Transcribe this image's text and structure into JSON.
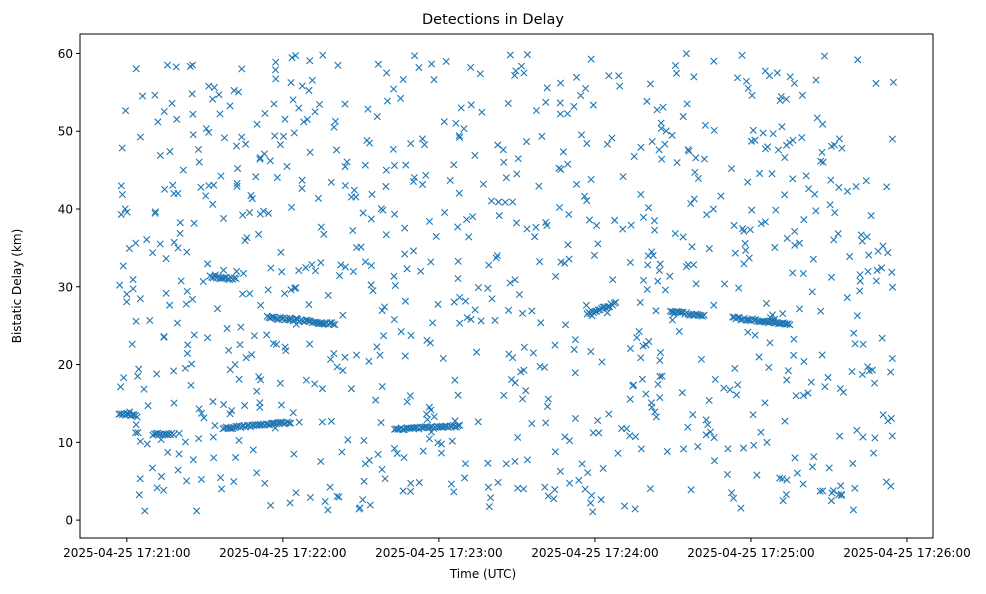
{
  "chart_data": {
    "type": "scatter",
    "title": "Detections in Delay",
    "xlabel": "Time (UTC)",
    "ylabel": "Bistatic Delay (km)",
    "x_axis_type": "time",
    "x_tick_labels": [
      "2025-04-25 17:21:00",
      "2025-04-25 17:22:00",
      "2025-04-25 17:23:00",
      "2025-04-25 17:24:00",
      "2025-04-25 17:25:00",
      "2025-04-25 17:26:00"
    ],
    "y_ticks": [
      0,
      10,
      20,
      30,
      40,
      50,
      60
    ],
    "xlim": [
      "2025-04-25 17:20:42",
      "2025-04-25 17:26:10"
    ],
    "ylim": [
      -2.3,
      62.5
    ],
    "grid": false,
    "marker": "x",
    "marker_color": "#1f77b4",
    "series": [
      {
        "note_only": true,
        "tracks": [
          {
            "t": [
              "2025-04-25 17:20:57",
              "2025-04-25 17:21:04"
            ],
            "delay": [
              13.6,
              13.4
            ]
          },
          {
            "t": [
              "2025-04-25 17:21:10",
              "2025-04-25 17:21:18"
            ],
            "delay": [
              11.0,
              11.1
            ]
          },
          {
            "t": [
              "2025-04-25 17:21:37",
              "2025-04-25 17:22:03"
            ],
            "delay": [
              11.8,
              12.6
            ]
          },
          {
            "t": [
              "2025-04-25 17:21:32",
              "2025-04-25 17:21:42"
            ],
            "delay": [
              31.3,
              31.0
            ]
          },
          {
            "t": [
              "2025-04-25 17:21:54",
              "2025-04-25 17:22:20"
            ],
            "delay": [
              26.1,
              25.2
            ]
          },
          {
            "t": [
              "2025-04-25 17:22:43",
              "2025-04-25 17:23:08"
            ],
            "delay": [
              11.7,
              12.1
            ]
          },
          {
            "t": [
              "2025-04-25 17:23:57",
              "2025-04-25 17:24:08"
            ],
            "delay": [
              26.5,
              27.9
            ]
          },
          {
            "t": [
              "2025-04-25 17:24:29",
              "2025-04-25 17:24:42"
            ],
            "delay": [
              26.9,
              26.2
            ]
          },
          {
            "t": [
              "2025-04-25 17:24:53",
              "2025-04-25 17:25:15"
            ],
            "delay": [
              26.0,
              25.2
            ]
          }
        ]
      }
    ]
  }
}
